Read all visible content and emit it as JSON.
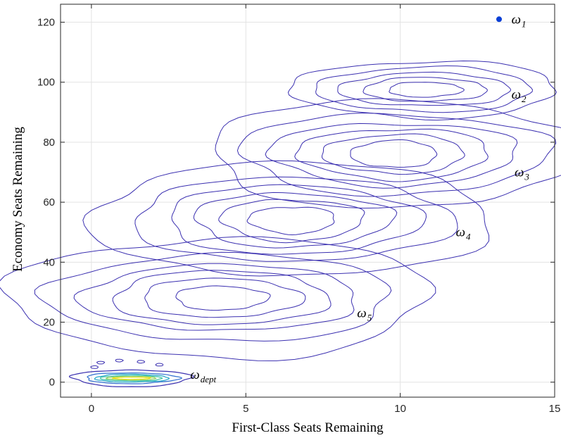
{
  "chart_data": {
    "type": "contour",
    "xlabel": "First-Class Seats Remaining",
    "ylabel": "Economy Seats Remaining",
    "xlim": [
      -1,
      15
    ],
    "ylim": [
      -5,
      126
    ],
    "xticks": [
      0,
      5,
      10,
      15
    ],
    "yticks": [
      0,
      20,
      40,
      60,
      80,
      100,
      120
    ],
    "xtick_labels": [
      "0",
      "5",
      "10",
      "15"
    ],
    "ytick_labels": [
      "0",
      "20",
      "40",
      "60",
      "80",
      "100",
      "120"
    ],
    "grid": true,
    "colors": {
      "contour": "#3a2fb0",
      "point": "#0a3fd6",
      "dept_levels": [
        "#3a2fb0",
        "#2f6fd0",
        "#1fa6c8",
        "#3ec3a0",
        "#8fd05a",
        "#f2e21a"
      ]
    },
    "clusters": [
      {
        "label_base": "ω",
        "label_sub": "1",
        "kind": "point",
        "center": [
          13.2,
          121
        ],
        "label_pos": [
          13.6,
          121
        ]
      },
      {
        "label_base": "ω",
        "label_sub": "2",
        "kind": "contour",
        "center": [
          10.8,
          97.5
        ],
        "radii": [
          [
            1.2,
            2.5
          ],
          [
            2,
            4
          ],
          [
            2.8,
            5.5
          ],
          [
            3.5,
            7.5
          ],
          [
            4.3,
            9.5
          ]
        ],
        "label_pos": [
          13.6,
          96
        ]
      },
      {
        "label_base": "ω",
        "label_sub": "3",
        "kind": "contour",
        "center": [
          9.8,
          76
        ],
        "radii": [
          [
            1.4,
            4.5
          ],
          [
            2.3,
            6.5
          ],
          [
            3.1,
            8.5
          ],
          [
            4,
            10.5
          ],
          [
            5,
            13.5
          ],
          [
            6,
            18
          ]
        ],
        "label_pos": [
          13.7,
          70
        ]
      },
      {
        "label_base": "ω",
        "label_sub": "4",
        "kind": "contour",
        "center": [
          6.5,
          54
        ],
        "radii": [
          [
            1.4,
            4.5
          ],
          [
            2.3,
            7
          ],
          [
            3.2,
            9
          ],
          [
            4.1,
            11.5
          ],
          [
            5.2,
            14
          ],
          [
            6.5,
            19
          ]
        ],
        "label_pos": [
          11.8,
          50
        ]
      },
      {
        "label_base": "ω",
        "label_sub": "5",
        "kind": "contour",
        "center": [
          4.2,
          28
        ],
        "radii": [
          [
            1.5,
            4
          ],
          [
            2.6,
            6.5
          ],
          [
            3.5,
            9
          ],
          [
            4.5,
            11
          ],
          [
            5.6,
            14.5
          ],
          [
            6.8,
            20
          ]
        ],
        "label_pos": [
          8.6,
          23
        ]
      },
      {
        "label_base": "ω",
        "label_sub": "dept",
        "kind": "contour-filled",
        "center": [
          1.3,
          1.3
        ],
        "radii": [
          [
            0.6,
            0.35
          ],
          [
            0.8,
            0.6
          ],
          [
            1.0,
            0.9
          ],
          [
            1.2,
            1.3
          ],
          [
            1.5,
            1.8
          ],
          [
            1.9,
            2.8
          ]
        ],
        "label_pos": [
          3.2,
          2.5
        ]
      }
    ]
  }
}
